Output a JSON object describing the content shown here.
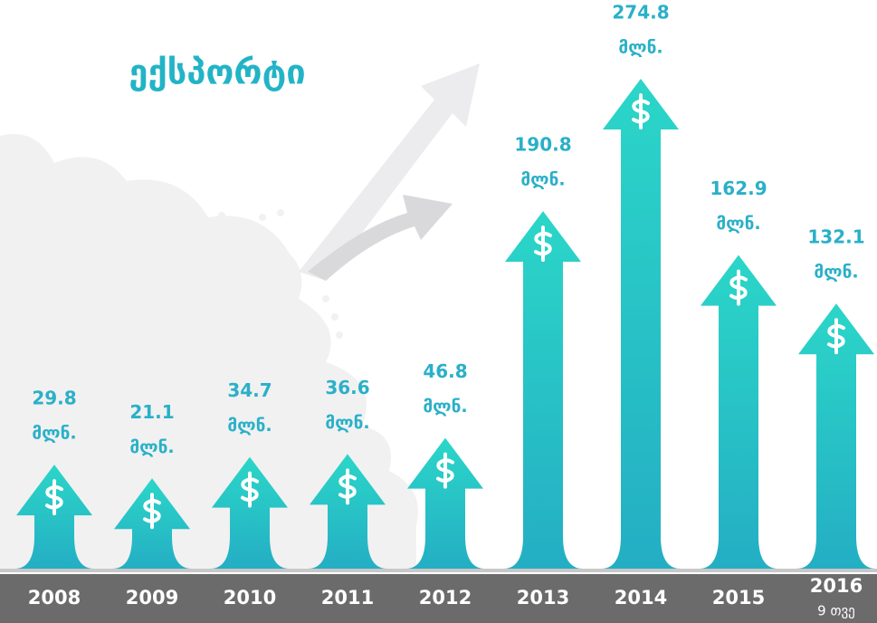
{
  "chart_data": {
    "type": "arrow-bar",
    "title": "ექსპორტი",
    "categories": [
      "2008",
      "2009",
      "2010",
      "2011",
      "2012",
      "2013",
      "2014",
      "2015",
      "2016"
    ],
    "category_note": "9 თვე",
    "values": [
      29.8,
      21.1,
      34.7,
      36.6,
      46.8,
      190.8,
      274.8,
      162.9,
      132.1
    ],
    "unit_label": "მლნ.",
    "color": "#27c6c6"
  }
}
